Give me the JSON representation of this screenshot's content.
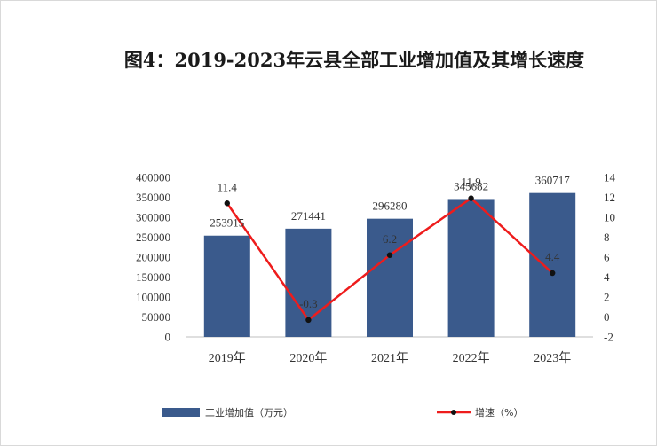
{
  "title": "图4：2019-2023年云县全部工业增加值及其增长速度",
  "chart_data": {
    "type": "bar",
    "categories": [
      "2019年",
      "2020年",
      "2021年",
      "2022年",
      "2023年"
    ],
    "series": [
      {
        "name": "工业增加值（万元）",
        "type": "bar",
        "axis": "left",
        "color": "#3a5a8c",
        "values": [
          253915,
          271441,
          296280,
          345682,
          360717
        ]
      },
      {
        "name": "增速（%）",
        "type": "line",
        "axis": "right",
        "color": "#ee1c1c",
        "values": [
          11.4,
          -0.3,
          6.2,
          11.9,
          4.4
        ]
      }
    ],
    "y_left": {
      "min": 0,
      "max": 400000,
      "step": 50000
    },
    "y_right": {
      "min": -2,
      "max": 14,
      "step": 2
    },
    "grid": false,
    "legend": "bottom"
  }
}
